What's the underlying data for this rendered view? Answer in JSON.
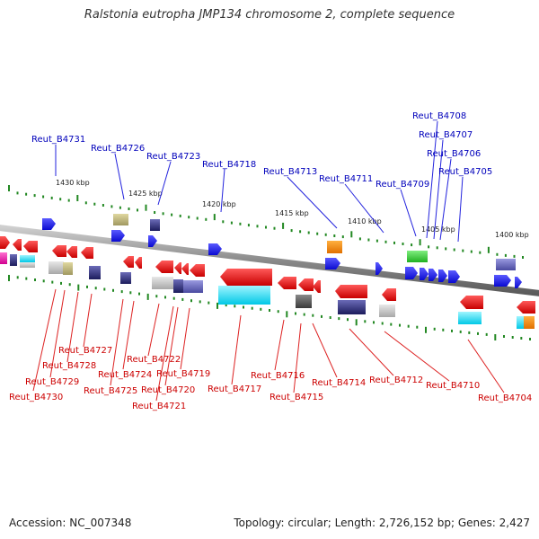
{
  "title": "Ralstonia eutropha JMP134 chromosome 2, complete sequence",
  "accession": "Accession: NC_007348",
  "topology": "Topology: circular; Length: 2,726,152 bp; Genes: 2,427",
  "scale_labels": [
    "1430 kbp",
    "1425 kbp",
    "1420 kbp",
    "1415 kbp",
    "1410 kbp",
    "1405 kbp",
    "1400 kbp"
  ],
  "genes_top": [
    "Reut_B4731",
    "Reut_B4726",
    "Reut_B4723",
    "Reut_B4718",
    "Reut_B4713",
    "Reut_B4711",
    "Reut_B4709",
    "Reut_B4708",
    "Reut_B4707",
    "Reut_B4706",
    "Reut_B4705"
  ],
  "genes_bottom": [
    "Reut_B4730",
    "Reut_B4729",
    "Reut_B4728",
    "Reut_B4727",
    "Reut_B4725",
    "Reut_B4724",
    "Reut_B4722",
    "Reut_B4721",
    "Reut_B4720",
    "Reut_B4719",
    "Reut_B4717",
    "Reut_B4716",
    "Reut_B4715",
    "Reut_B4714",
    "Reut_B4712",
    "Reut_B4710",
    "Reut_B4704"
  ],
  "colors": {
    "forward_strand": "#1a1aff",
    "reverse_strand": "#ee1111",
    "backbone": "#888888",
    "tick": "#228822",
    "label_top": "#0000bb",
    "label_bottom": "#cc0000"
  }
}
